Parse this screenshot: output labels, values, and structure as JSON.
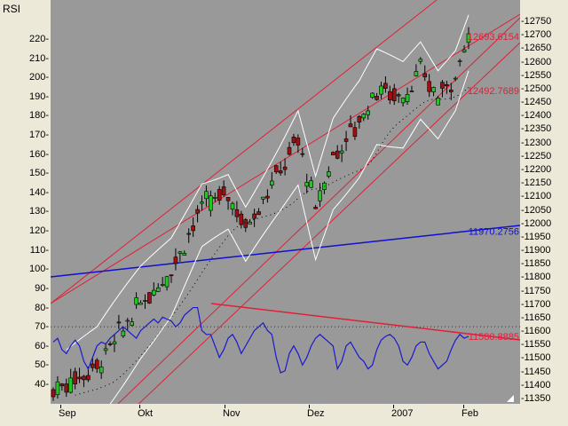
{
  "title": "RSI",
  "colors": {
    "plot_bg": "#999999",
    "panel_bg": "#ece9d8",
    "up_candle": "#22c822",
    "down_candle": "#a01010",
    "trend_red": "#e0203a",
    "trend_blue": "#1010d0",
    "bollinger": "#ffffff",
    "rsi_line": "#1a1acc",
    "moving_avg_dots": "#000000"
  },
  "chart_data": {
    "type": "candlestick",
    "title": "RSI",
    "left_axis": {
      "label": "RSI",
      "ticks": [
        220,
        210,
        200,
        190,
        180,
        170,
        160,
        150,
        140,
        130,
        120,
        110,
        100,
        90,
        80,
        70,
        60,
        50,
        40
      ],
      "range": [
        30,
        228
      ]
    },
    "right_axis": {
      "ticks": [
        12750,
        12700,
        12650,
        12600,
        12550,
        12500,
        12450,
        12400,
        12350,
        12300,
        12250,
        12200,
        12150,
        12100,
        12050,
        12000,
        11950,
        11900,
        11850,
        11800,
        11750,
        11700,
        11650,
        11600,
        11550,
        11500,
        11450,
        11400,
        11350
      ],
      "range": [
        11330,
        12780
      ]
    },
    "x_axis": {
      "labels": [
        "Sep",
        "Okt",
        "Nov",
        "Dez",
        "2007",
        "Feb"
      ],
      "positions": [
        68,
        157,
        253,
        348,
        443,
        522
      ]
    },
    "annotations": [
      {
        "text": "12693.6154",
        "color": "#e0203a",
        "y": 12693.6154
      },
      {
        "text": "12492.7689",
        "color": "#e0203a",
        "y": 12492.7689
      },
      {
        "text": "11970.2756",
        "color": "#1010d0",
        "y": 11970.2756
      },
      {
        "text": "11580.8885",
        "color": "#e0203a",
        "y": 11580.8885
      }
    ],
    "price_range_estimate": {
      "start": 11380,
      "end": 12700
    },
    "rsi_range_estimate": {
      "min": 48,
      "max": 82,
      "last": 65
    },
    "series": [
      {
        "name": "Price (candles)",
        "type": "candlestick"
      },
      {
        "name": "Bollinger Upper",
        "type": "line",
        "color": "#ffffff"
      },
      {
        "name": "Bollinger Lower",
        "type": "line",
        "color": "#ffffff"
      },
      {
        "name": "Moving Average",
        "type": "dotted",
        "color": "#000000"
      },
      {
        "name": "RSI",
        "type": "line",
        "color": "#1a1acc"
      }
    ],
    "trend_lines": [
      {
        "name": "Upper channel (steep)",
        "color": "#e0203a"
      },
      {
        "name": "Upper channel",
        "color": "#e0203a",
        "value": 12693.6154
      },
      {
        "name": "Lower channel",
        "color": "#e0203a",
        "value": 12492.7689
      },
      {
        "name": "Blue trendline",
        "color": "#1010d0",
        "value": 11970.2756
      },
      {
        "name": "RSI trendline",
        "color": "#e0203a",
        "value": 11580.8885
      }
    ],
    "reference_line": {
      "name": "RSI 70 dotted",
      "value": 70
    }
  }
}
